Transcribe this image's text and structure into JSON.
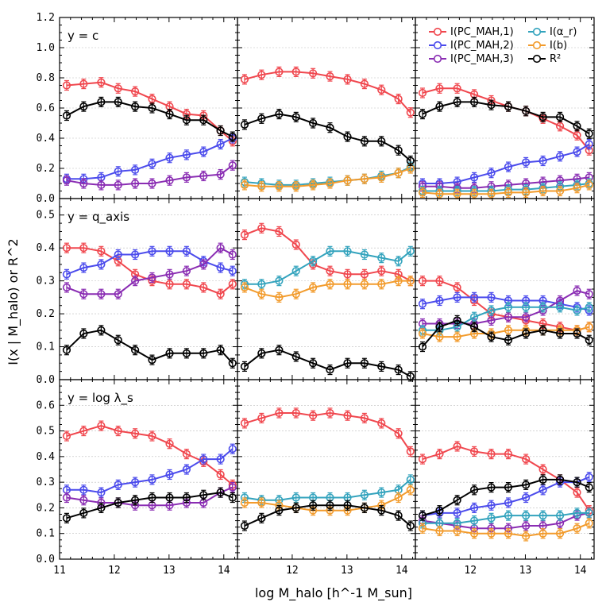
{
  "chart_data": {
    "type": "line",
    "xlabel": "log M_halo [h^-1 M_sun]",
    "ylabel": "I(x | M_halo) or R^2",
    "xlim": [
      11,
      14.25
    ],
    "xticks": [
      11,
      12,
      13,
      14
    ],
    "legend": {
      "placement": "top-right",
      "entries": [
        {
          "key": "pc1",
          "label": "I(PC_MAH,1)"
        },
        {
          "key": "pc2",
          "label": "I(PC_MAH,2)"
        },
        {
          "key": "pc3",
          "label": "I(PC_MAH,3)"
        },
        {
          "key": "alpha",
          "label": "I(α_r)"
        },
        {
          "key": "b",
          "label": "I(b)"
        },
        {
          "key": "r2",
          "label": "R²"
        }
      ]
    },
    "series_styles": {
      "pc1": {
        "color": "#f0474e"
      },
      "pc2": {
        "color": "#4b4bec"
      },
      "pc3": {
        "color": "#8a2db3"
      },
      "alpha": {
        "color": "#33a3bd"
      },
      "b": {
        "color": "#f29b2c"
      },
      "r2": {
        "color": "#000000"
      }
    },
    "x": [
      11.13,
      11.44,
      11.76,
      12.07,
      12.38,
      12.69,
      13.01,
      13.32,
      13.63,
      13.94,
      14.16
    ],
    "rows": [
      {
        "label": "y = c",
        "ylim": [
          0,
          1.2
        ],
        "yticks": [
          "0.0",
          "0.2",
          "0.4",
          "0.6",
          "0.8",
          "1.0",
          "1.2"
        ],
        "tickvals": [
          0,
          0.2,
          0.4,
          0.6,
          0.8,
          1.0,
          1.2
        ],
        "panels": [
          {
            "series": {
              "pc1": [
                0.75,
                0.76,
                0.77,
                0.73,
                0.71,
                0.66,
                0.61,
                0.56,
                0.55,
                0.45,
                0.38
              ],
              "pc2": [
                0.13,
                0.13,
                0.14,
                0.18,
                0.19,
                0.23,
                0.27,
                0.29,
                0.31,
                0.36,
                0.4
              ],
              "pc3": [
                0.12,
                0.1,
                0.09,
                0.09,
                0.1,
                0.1,
                0.12,
                0.14,
                0.15,
                0.16,
                0.22
              ],
              "r2": [
                0.55,
                0.61,
                0.64,
                0.64,
                0.61,
                0.6,
                0.56,
                0.52,
                0.52,
                0.45,
                0.41
              ]
            }
          },
          {
            "series": {
              "pc1": [
                0.79,
                0.82,
                0.84,
                0.84,
                0.83,
                0.81,
                0.79,
                0.76,
                0.72,
                0.66,
                0.57
              ],
              "alpha": [
                0.11,
                0.1,
                0.09,
                0.09,
                0.1,
                0.11,
                0.12,
                0.13,
                0.15,
                0.17,
                0.21
              ],
              "b": [
                0.09,
                0.08,
                0.08,
                0.08,
                0.09,
                0.1,
                0.12,
                0.13,
                0.14,
                0.17,
                0.2
              ],
              "r2": [
                0.49,
                0.53,
                0.56,
                0.54,
                0.5,
                0.47,
                0.41,
                0.38,
                0.38,
                0.32,
                0.25
              ]
            }
          },
          {
            "series": {
              "pc1": [
                0.7,
                0.73,
                0.73,
                0.69,
                0.65,
                0.61,
                0.58,
                0.53,
                0.48,
                0.42,
                0.32
              ],
              "pc2": [
                0.1,
                0.1,
                0.11,
                0.14,
                0.17,
                0.21,
                0.24,
                0.25,
                0.28,
                0.31,
                0.36
              ],
              "pc3": [
                0.08,
                0.08,
                0.07,
                0.07,
                0.08,
                0.09,
                0.1,
                0.11,
                0.12,
                0.13,
                0.14
              ],
              "alpha": [
                0.05,
                0.05,
                0.05,
                0.05,
                0.05,
                0.06,
                0.06,
                0.07,
                0.08,
                0.09,
                0.1
              ],
              "b": [
                0.04,
                0.03,
                0.03,
                0.03,
                0.03,
                0.04,
                0.04,
                0.05,
                0.05,
                0.07,
                0.09
              ],
              "r2": [
                0.56,
                0.61,
                0.64,
                0.64,
                0.62,
                0.61,
                0.58,
                0.54,
                0.54,
                0.48,
                0.43
              ]
            }
          }
        ]
      },
      {
        "label": "y = q_axis",
        "ylim": [
          0,
          0.55
        ],
        "yticks": [
          "0.0",
          "0.1",
          "0.2",
          "0.3",
          "0.4",
          "0.5"
        ],
        "tickvals": [
          0,
          0.1,
          0.2,
          0.3,
          0.4,
          0.5
        ],
        "panels": [
          {
            "series": {
              "pc1": [
                0.4,
                0.4,
                0.39,
                0.36,
                0.32,
                0.3,
                0.29,
                0.29,
                0.28,
                0.26,
                0.29
              ],
              "pc2": [
                0.32,
                0.34,
                0.35,
                0.38,
                0.38,
                0.39,
                0.39,
                0.39,
                0.36,
                0.34,
                0.33
              ],
              "pc3": [
                0.28,
                0.26,
                0.26,
                0.26,
                0.3,
                0.31,
                0.32,
                0.33,
                0.35,
                0.4,
                0.38
              ],
              "r2": [
                0.09,
                0.14,
                0.15,
                0.12,
                0.09,
                0.06,
                0.08,
                0.08,
                0.08,
                0.09,
                0.05
              ]
            }
          },
          {
            "series": {
              "pc1": [
                0.44,
                0.46,
                0.45,
                0.41,
                0.35,
                0.33,
                0.32,
                0.32,
                0.33,
                0.32,
                0.3
              ],
              "alpha": [
                0.29,
                0.29,
                0.3,
                0.33,
                0.36,
                0.39,
                0.39,
                0.38,
                0.37,
                0.36,
                0.39
              ],
              "b": [
                0.28,
                0.26,
                0.25,
                0.26,
                0.28,
                0.29,
                0.29,
                0.29,
                0.29,
                0.3,
                0.3
              ],
              "r2": [
                0.04,
                0.08,
                0.09,
                0.07,
                0.05,
                0.03,
                0.05,
                0.05,
                0.04,
                0.03,
                0.01
              ]
            }
          },
          {
            "series": {
              "pc1": [
                0.3,
                0.3,
                0.28,
                0.24,
                0.2,
                0.19,
                0.18,
                0.17,
                0.16,
                0.15,
                0.16
              ],
              "pc2": [
                0.23,
                0.24,
                0.25,
                0.25,
                0.25,
                0.24,
                0.24,
                0.24,
                0.23,
                0.22,
                0.21
              ],
              "pc3": [
                0.17,
                0.17,
                0.17,
                0.17,
                0.18,
                0.19,
                0.19,
                0.21,
                0.24,
                0.27,
                0.26
              ],
              "alpha": [
                0.15,
                0.15,
                0.16,
                0.19,
                0.21,
                0.22,
                0.22,
                0.22,
                0.22,
                0.21,
                0.22
              ],
              "b": [
                0.14,
                0.13,
                0.13,
                0.14,
                0.14,
                0.15,
                0.15,
                0.15,
                0.15,
                0.15,
                0.16
              ],
              "r2": [
                0.1,
                0.16,
                0.18,
                0.16,
                0.13,
                0.12,
                0.14,
                0.15,
                0.14,
                0.14,
                0.12
              ]
            }
          }
        ]
      },
      {
        "label": "y = log λ_s",
        "ylim": [
          0,
          0.7
        ],
        "yticks": [
          "0.0",
          "0.1",
          "0.2",
          "0.3",
          "0.4",
          "0.5",
          "0.6",
          "0.7"
        ],
        "tickvals": [
          0,
          0.1,
          0.2,
          0.3,
          0.4,
          0.5,
          0.6,
          0.7
        ],
        "panels": [
          {
            "series": {
              "pc1": [
                0.48,
                0.5,
                0.52,
                0.5,
                0.49,
                0.48,
                0.45,
                0.41,
                0.38,
                0.33,
                0.29
              ],
              "pc2": [
                0.27,
                0.27,
                0.26,
                0.29,
                0.3,
                0.31,
                0.33,
                0.35,
                0.39,
                0.39,
                0.43
              ],
              "pc3": [
                0.24,
                0.23,
                0.22,
                0.22,
                0.21,
                0.21,
                0.21,
                0.22,
                0.22,
                0.26,
                0.28
              ],
              "r2": [
                0.16,
                0.18,
                0.2,
                0.22,
                0.23,
                0.24,
                0.24,
                0.24,
                0.25,
                0.26,
                0.24
              ]
            }
          },
          {
            "series": {
              "pc1": [
                0.53,
                0.55,
                0.57,
                0.57,
                0.56,
                0.57,
                0.56,
                0.55,
                0.53,
                0.49,
                0.42
              ],
              "alpha": [
                0.24,
                0.23,
                0.23,
                0.24,
                0.24,
                0.24,
                0.24,
                0.25,
                0.26,
                0.27,
                0.31
              ],
              "b": [
                0.22,
                0.22,
                0.21,
                0.2,
                0.19,
                0.19,
                0.19,
                0.2,
                0.21,
                0.24,
                0.27
              ],
              "r2": [
                0.13,
                0.16,
                0.19,
                0.2,
                0.21,
                0.21,
                0.21,
                0.2,
                0.19,
                0.17,
                0.13
              ]
            }
          },
          {
            "series": {
              "pc1": [
                0.39,
                0.41,
                0.44,
                0.42,
                0.41,
                0.41,
                0.39,
                0.35,
                0.31,
                0.26,
                0.19
              ],
              "pc2": [
                0.17,
                0.18,
                0.18,
                0.2,
                0.21,
                0.22,
                0.24,
                0.27,
                0.3,
                0.3,
                0.32
              ],
              "pc3": [
                0.15,
                0.14,
                0.13,
                0.12,
                0.12,
                0.12,
                0.13,
                0.13,
                0.14,
                0.17,
                0.18
              ],
              "alpha": [
                0.14,
                0.14,
                0.14,
                0.15,
                0.16,
                0.17,
                0.17,
                0.17,
                0.17,
                0.18,
                0.18
              ],
              "b": [
                0.12,
                0.11,
                0.11,
                0.1,
                0.1,
                0.1,
                0.09,
                0.1,
                0.1,
                0.12,
                0.14
              ],
              "r2": [
                0.17,
                0.19,
                0.23,
                0.27,
                0.28,
                0.28,
                0.29,
                0.31,
                0.31,
                0.3,
                0.28
              ]
            }
          }
        ]
      }
    ]
  }
}
